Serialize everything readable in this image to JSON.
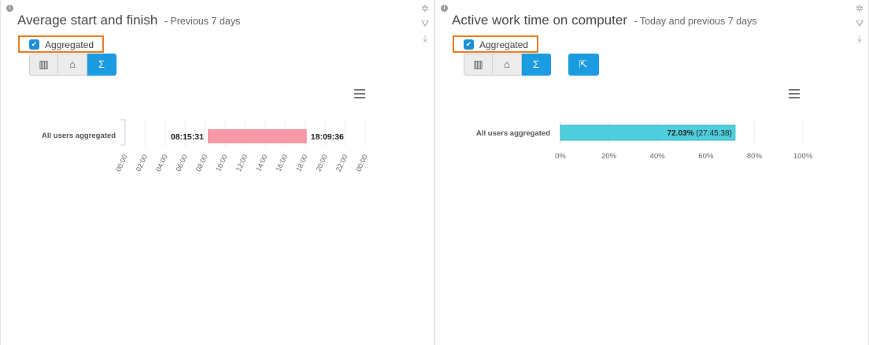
{
  "left": {
    "title": "Average start and finish",
    "subtitle": "- Previous 7 days",
    "aggregated_label": "Aggregated",
    "chart_data": {
      "type": "bar",
      "categories": [
        "All users aggregated"
      ],
      "series": [
        {
          "start": "08:15:31",
          "end": "18:09:36",
          "start_hours": 8.258,
          "end_hours": 18.16
        }
      ],
      "x_ticks": [
        "00:00",
        "02:00",
        "04:00",
        "06:00",
        "08:00",
        "10:00",
        "12:00",
        "14:00",
        "16:00",
        "18:00",
        "20:00",
        "22:00",
        "00:00"
      ],
      "xlim": [
        0,
        24
      ],
      "bar_color": "#f799a8",
      "start_label": "08:15:31",
      "end_label": "18:09:36"
    }
  },
  "right": {
    "title": "Active work time on computer",
    "subtitle": "- Today and previous 7 days",
    "aggregated_label": "Aggregated",
    "chart_data": {
      "type": "bar",
      "categories": [
        "All users aggregated"
      ],
      "values": [
        72.03
      ],
      "value_label": "72.03%",
      "value_extra": "(27:45:38)",
      "x_ticks": [
        "0%",
        "20%",
        "40%",
        "60%",
        "80%",
        "100%"
      ],
      "xlim": [
        0,
        100
      ],
      "bar_color": "#4fcfdd"
    }
  },
  "icons": {
    "info": "info-icon",
    "settings": "gear-icon",
    "filter": "filter-icon",
    "download": "download-icon",
    "menu": "hamburger-menu-icon",
    "building": "building-icon",
    "home": "home-icon",
    "sum": "sigma-icon",
    "export": "export-icon"
  }
}
